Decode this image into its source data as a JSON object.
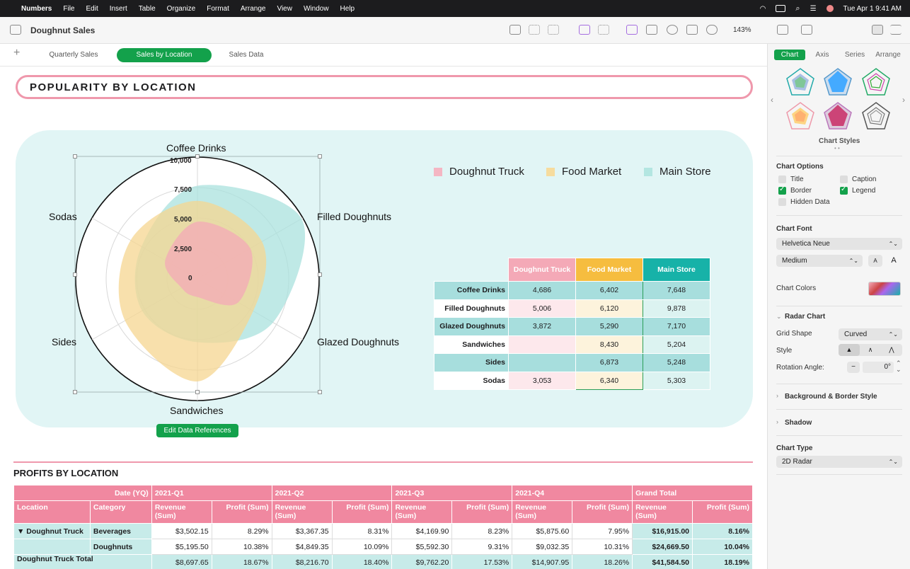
{
  "menubar": {
    "app": "Numbers",
    "items": [
      "File",
      "Edit",
      "Insert",
      "Table",
      "Organize",
      "Format",
      "Arrange",
      "View",
      "Window",
      "Help"
    ],
    "datetime": "Tue Apr 1  9:41 AM"
  },
  "toolbar": {
    "doc_title": "Doughnut Sales",
    "zoom": "143%"
  },
  "sheets": {
    "tabs": [
      "Quarterly Sales",
      "Sales by Location",
      "Sales Data"
    ],
    "active": "Sales by Location"
  },
  "banner": {
    "title": "POPULARITY BY LOCATION"
  },
  "chart_data": {
    "type": "radar",
    "axes": [
      "Coffee Drinks",
      "Filled Doughnuts",
      "Glazed Doughnuts",
      "Sandwiches",
      "Sides",
      "Sodas"
    ],
    "scale_ticks": [
      "10,000",
      "7,500",
      "5,000",
      "2,500",
      "0"
    ],
    "range": [
      0,
      10000
    ],
    "grid_shape": "Curved",
    "legend_position": "top-right",
    "series": [
      {
        "name": "Doughnut Truck",
        "color": "#f4a9b7",
        "values": [
          4686,
          5006,
          3872,
          0,
          0,
          3053
        ]
      },
      {
        "name": "Food Market",
        "color": "#f5d590",
        "values": [
          6402,
          6120,
          5290,
          8430,
          6873,
          6340
        ]
      },
      {
        "name": "Main Store",
        "color": "#a9e2dd",
        "values": [
          7648,
          9878,
          7170,
          5204,
          5248,
          5303
        ]
      }
    ]
  },
  "legend": [
    "Doughnut Truck",
    "Food Market",
    "Main Store"
  ],
  "edit_button": "Edit Data References",
  "data_table": {
    "headers": [
      "Doughnut Truck",
      "Food Market",
      "Main Store"
    ],
    "rows": [
      {
        "label": "Coffee Drinks",
        "values": [
          "4,686",
          "6,402",
          "7,648"
        ]
      },
      {
        "label": "Filled Doughnuts",
        "values": [
          "5,006",
          "6,120",
          "9,878"
        ]
      },
      {
        "label": "Glazed Doughnuts",
        "values": [
          "3,872",
          "5,290",
          "7,170"
        ]
      },
      {
        "label": "Sandwiches",
        "values": [
          "",
          "8,430",
          "5,204"
        ]
      },
      {
        "label": "Sides",
        "values": [
          "",
          "6,873",
          "5,248"
        ]
      },
      {
        "label": "Sodas",
        "values": [
          "3,053",
          "6,340",
          "5,303"
        ]
      }
    ]
  },
  "profits": {
    "title": "PROFITS BY LOCATION",
    "h1": [
      "Date (YQ)",
      "2021-Q1",
      "2021-Q2",
      "2021-Q3",
      "2021-Q4",
      "Grand Total"
    ],
    "h2": [
      "Location",
      "Category",
      "Revenue (Sum)",
      "Profit (Sum)",
      "Revenue (Sum)",
      "Profit (Sum)",
      "Revenue (Sum)",
      "Profit (Sum)",
      "Revenue (Sum)",
      "Profit (Sum)",
      "Revenue (Sum)",
      "Profit (Sum)"
    ],
    "rows": [
      [
        "▼  Doughnut Truck",
        "Beverages",
        "$3,502.15",
        "8.29%",
        "$3,367.35",
        "8.31%",
        "$4,169.90",
        "8.23%",
        "$5,875.60",
        "7.95%",
        "$16,915.00",
        "8.16%"
      ],
      [
        "",
        "Doughnuts",
        "$5,195.50",
        "10.38%",
        "$4,849.35",
        "10.09%",
        "$5,592.30",
        "9.31%",
        "$9,032.35",
        "10.31%",
        "$24,669.50",
        "10.04%"
      ],
      [
        "Doughnut Truck Total",
        "",
        "$8,697.65",
        "18.67%",
        "$8,216.70",
        "18.40%",
        "$9,762.20",
        "17.53%",
        "$14,907.95",
        "18.26%",
        "$41,584.50",
        "18.19%"
      ]
    ]
  },
  "sidebar": {
    "tabs": [
      "Chart",
      "Axis",
      "Series",
      "Arrange"
    ],
    "styles_label": "Chart Styles",
    "options_label": "Chart Options",
    "options": [
      {
        "label": "Title",
        "checked": false
      },
      {
        "label": "Caption",
        "checked": false
      },
      {
        "label": "Border",
        "checked": true
      },
      {
        "label": "Legend",
        "checked": true
      },
      {
        "label": "Hidden Data",
        "checked": false
      }
    ],
    "font_label": "Chart Font",
    "font": "Helvetica Neue",
    "weight": "Medium",
    "colors_label": "Chart Colors",
    "radar_label": "Radar Chart",
    "grid_shape_label": "Grid Shape",
    "grid_shape": "Curved",
    "style_label": "Style",
    "rotation_label": "Rotation Angle:",
    "rotation": "0°",
    "bg_label": "Background & Border Style",
    "shadow_label": "Shadow",
    "type_label": "Chart Type",
    "type": "2D Radar"
  }
}
